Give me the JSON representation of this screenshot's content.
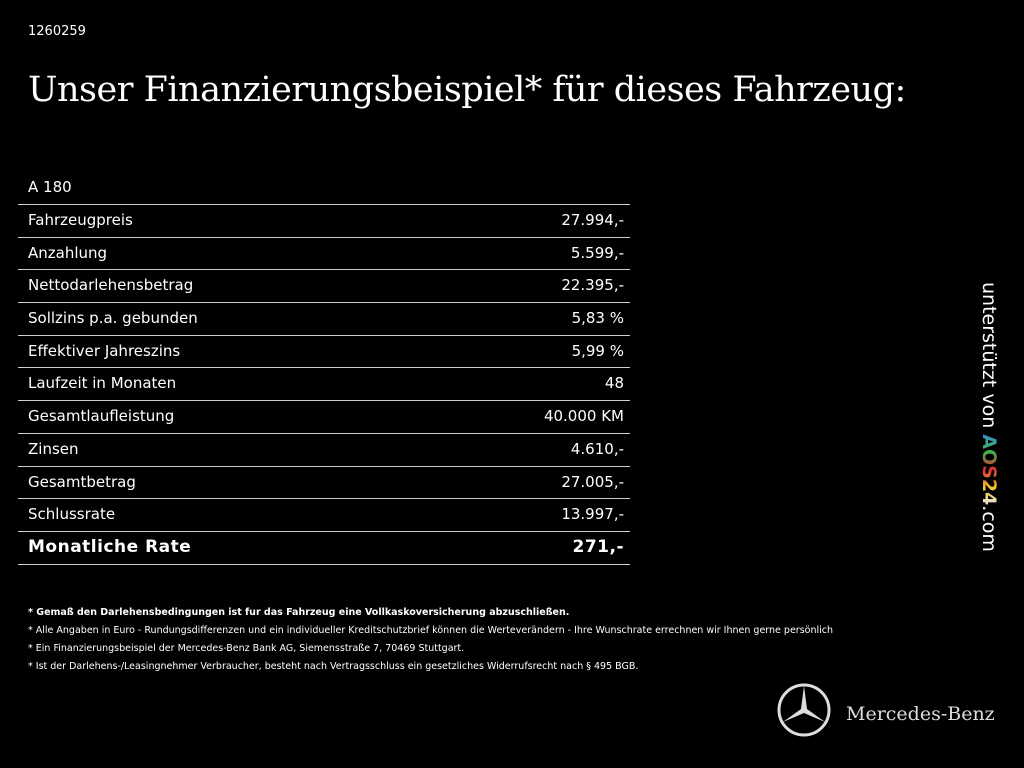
{
  "header": {
    "id": "1260259",
    "title": "Unser Finanzierungsbeispiel* für dieses Fahrzeug:"
  },
  "table": {
    "caption": "A 180",
    "rows": [
      [
        "Fahrzeugpreis",
        "27.994,-"
      ],
      [
        "Anzahlung",
        "5.599,-"
      ],
      [
        "Nettodarlehensbetrag",
        "22.395,-"
      ],
      [
        "Sollzins p.a. gebunden",
        "5,83 %"
      ],
      [
        "Effektiver Jahreszins",
        "5,99 %"
      ],
      [
        "Laufzeit in Monaten",
        "48"
      ],
      [
        "Gesamtlaufleistung",
        "40.000 KM"
      ],
      [
        "Zinsen",
        "4.610,-"
      ],
      [
        "Gesamtbetrag",
        "27.005,-"
      ],
      [
        "Schlussrate",
        "13.997,-"
      ]
    ],
    "total": [
      "Monatliche Rate",
      "271,-"
    ]
  },
  "footnotes": [
    "* Gemaß den Darlehensbedingungen ist fur das Fahrzeug eine Vollkaskoversicherung abzuschließen.",
    "* Alle Angaben in Euro - Rundungsdifferenzen und ein individueller Kreditschutzbrief können die Werteverändern - Ihre Wunschrate errechnen wir Ihnen gerne persönlich",
    "* Ein Finanzierungsbeispiel der Mercedes-Benz Bank AG, Siemensstraße 7, 70469 Stuttgart.",
    "* Ist der Darlehens-/Leasingnehmer Verbraucher, besteht nach Vertragsschluss ein gesetzliches Widerrufsrecht nach § 495 BGB."
  ],
  "side": {
    "prefix": "unterstützt von",
    "logo": "AOS24",
    "suffix": ".com"
  },
  "brand": "Mercedes-Benz"
}
